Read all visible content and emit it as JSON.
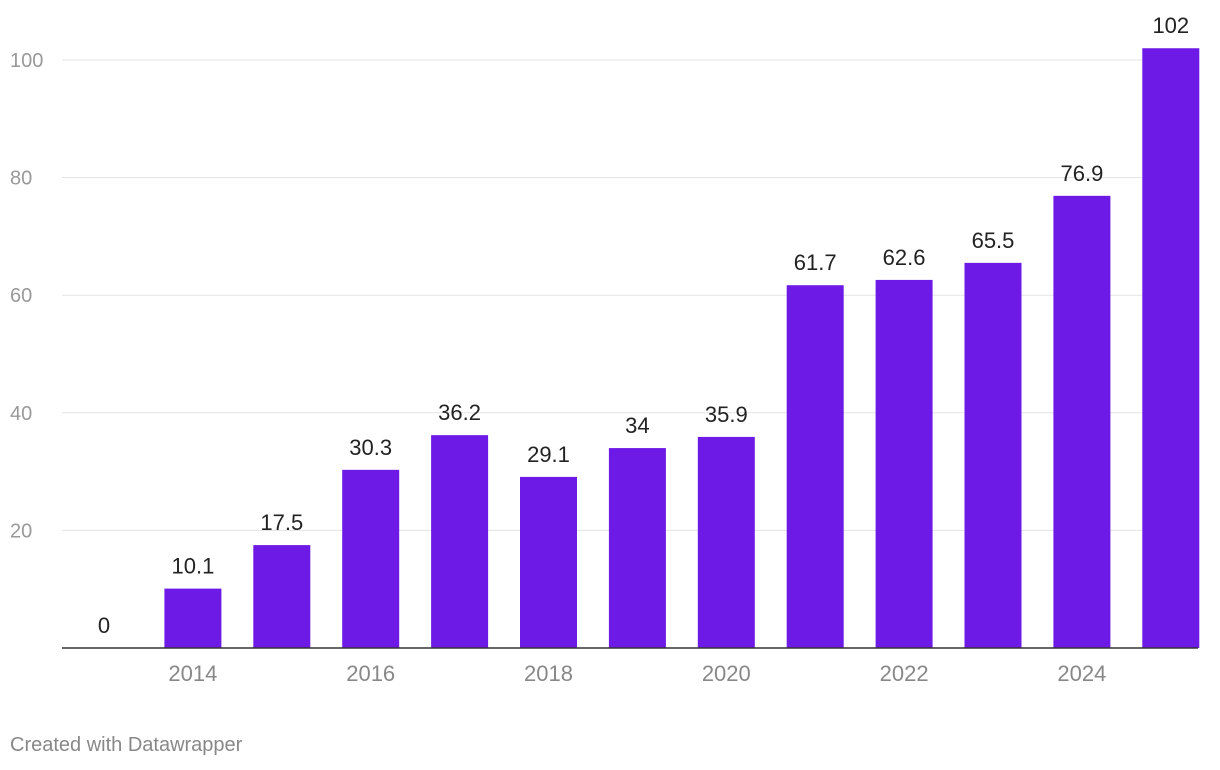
{
  "chart_data": {
    "type": "bar",
    "title": "",
    "xlabel": "",
    "ylabel": "",
    "categories": [
      "2013",
      "2014",
      "2015",
      "2016",
      "2017",
      "2018",
      "2019",
      "2020",
      "2021",
      "2022",
      "2023",
      "2024",
      "2025"
    ],
    "values": [
      0,
      10.1,
      17.5,
      30.3,
      36.2,
      29.1,
      34,
      35.9,
      61.7,
      62.6,
      65.5,
      76.9,
      102
    ],
    "value_labels": [
      "0",
      "10.1",
      "17.5",
      "30.3",
      "36.2",
      "29.1",
      "34",
      "35.9",
      "61.7",
      "62.6",
      "65.5",
      "76.9",
      "102"
    ],
    "x_tick_labels": [
      "2014",
      "2016",
      "2018",
      "2020",
      "2022",
      "2024"
    ],
    "y_ticks": [
      20,
      40,
      60,
      80,
      100
    ],
    "y_tick_labels": [
      "20",
      "40",
      "60",
      "80",
      "100"
    ],
    "ylim": [
      0,
      110
    ],
    "grid": true,
    "legend": "none",
    "colors": {
      "bar": "#6e1ae6",
      "grid": "#e3e3e3",
      "axis": "#333333",
      "tick_text": "#999999",
      "x_tick_text": "#888888",
      "value_text": "#222222"
    }
  },
  "footer": {
    "credit": "Created with Datawrapper"
  }
}
